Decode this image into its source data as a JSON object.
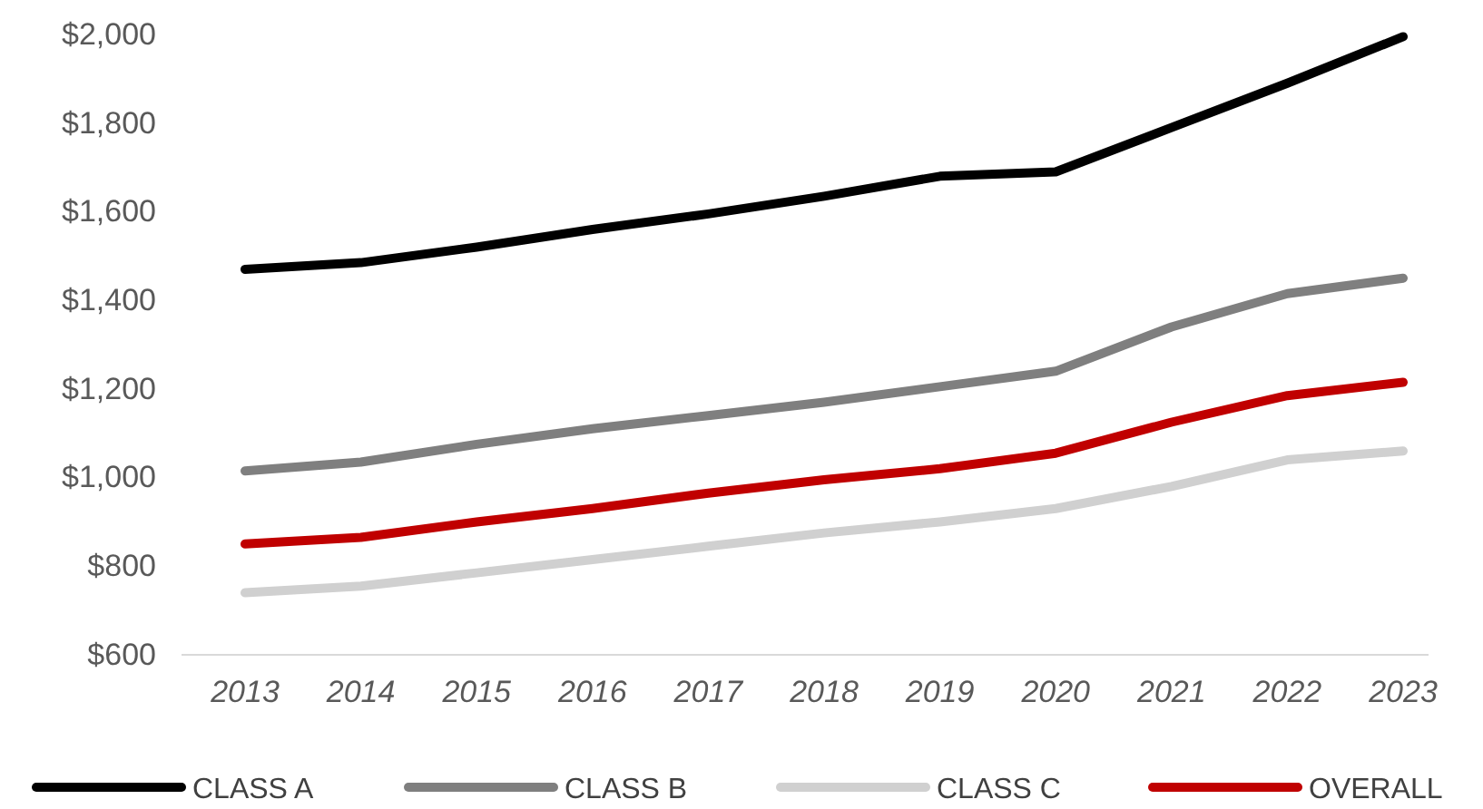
{
  "chart_data": {
    "type": "line",
    "categories": [
      "2013",
      "2014",
      "2015",
      "2016",
      "2017",
      "2018",
      "2019",
      "2020",
      "2021",
      "2022",
      "2023"
    ],
    "ylim": [
      600,
      2000
    ],
    "yticks": [
      {
        "value": 600,
        "label": "$600"
      },
      {
        "value": 800,
        "label": "$800"
      },
      {
        "value": 1000,
        "label": "$1,000"
      },
      {
        "value": 1200,
        "label": "$1,200"
      },
      {
        "value": 1400,
        "label": "$1,400"
      },
      {
        "value": 1600,
        "label": "$1,600"
      },
      {
        "value": 1800,
        "label": "$1,800"
      },
      {
        "value": 2000,
        "label": "$2,000"
      }
    ],
    "grid": false,
    "legend": "bottom",
    "marker": "none",
    "line_style": "solid",
    "series": [
      {
        "name": "CLASS A",
        "color": "#000000",
        "values": [
          1470,
          1485,
          1520,
          1560,
          1595,
          1635,
          1680,
          1690,
          1790,
          1890,
          1995
        ]
      },
      {
        "name": "CLASS B",
        "color": "#7f7f7f",
        "values": [
          1015,
          1035,
          1075,
          1110,
          1140,
          1170,
          1205,
          1240,
          1340,
          1415,
          1450
        ]
      },
      {
        "name": "CLASS C",
        "color": "#d0d0d0",
        "values": [
          740,
          755,
          785,
          815,
          845,
          875,
          900,
          930,
          980,
          1040,
          1060
        ]
      },
      {
        "name": "OVERALL",
        "color": "#c00000",
        "values": [
          850,
          865,
          900,
          930,
          965,
          995,
          1020,
          1055,
          1125,
          1185,
          1215
        ]
      }
    ]
  }
}
